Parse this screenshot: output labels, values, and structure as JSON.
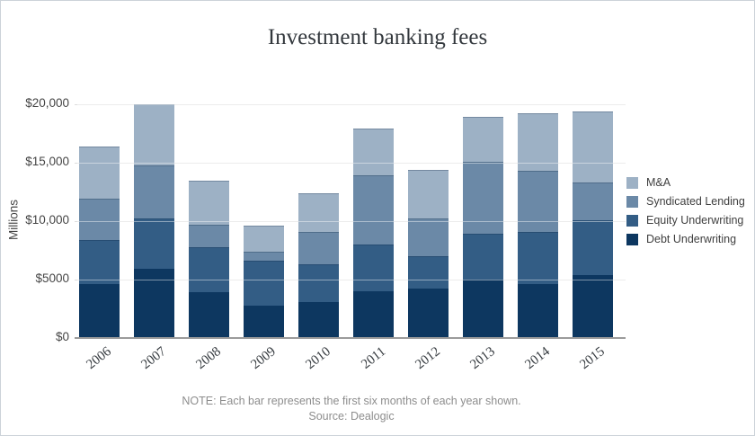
{
  "card": {
    "title": "Investment banking fees"
  },
  "y_axis": {
    "label": "Millions",
    "ticks": [
      {
        "label": "$20,000",
        "value": 20000
      },
      {
        "label": "$15,000",
        "value": 15000
      },
      {
        "label": "$10,000",
        "value": 10000
      },
      {
        "label": "$5000",
        "value": 5000
      },
      {
        "label": "$0",
        "value": 0
      }
    ]
  },
  "legend": [
    {
      "label": "M&A",
      "color": "#9db1c5"
    },
    {
      "label": "Syndicated Lending",
      "color": "#6b89a7"
    },
    {
      "label": "Equity Underwriting",
      "color": "#335d85"
    },
    {
      "label": "Debt Underwriting",
      "color": "#0d3760"
    }
  ],
  "note": {
    "line1": "NOTE: Each bar represents the first six months of each year shown.",
    "line2": "Source: Dealogic"
  },
  "colors": {
    "grid": "#dcdcdc",
    "axis": "#9b9b9b",
    "title_text": "#32373c",
    "tick_text": "#454545",
    "note_text": "#8d8d8d"
  },
  "chart_data": {
    "type": "bar",
    "stacked": true,
    "title": "Investment banking fees",
    "xlabel": "",
    "ylabel": "Millions",
    "ylim": [
      0,
      20000
    ],
    "grid": true,
    "legend_position": "right",
    "categories": [
      "2006",
      "2007",
      "2008",
      "2009",
      "2010",
      "2011",
      "2012",
      "2013",
      "2014",
      "2015"
    ],
    "series": [
      {
        "name": "Debt Underwriting",
        "color": "#0d3760",
        "values": [
          4600,
          5900,
          3900,
          2800,
          3100,
          4000,
          4200,
          5000,
          4600,
          5400
        ]
      },
      {
        "name": "Equity Underwriting",
        "color": "#335d85",
        "values": [
          3800,
          4300,
          3900,
          3800,
          3200,
          4000,
          2800,
          3900,
          4500,
          4700
        ]
      },
      {
        "name": "Syndicated Lending",
        "color": "#6b89a7",
        "values": [
          3500,
          4600,
          1900,
          800,
          2800,
          5900,
          3200,
          6200,
          5200,
          3200
        ]
      },
      {
        "name": "M&A",
        "color": "#9db1c5",
        "values": [
          4500,
          5200,
          3800,
          2200,
          3300,
          4000,
          4200,
          3800,
          4900,
          6100
        ]
      }
    ],
    "totals": [
      16400,
      20000,
      13500,
      9600,
      12400,
      17900,
      14400,
      18900,
      19200,
      19400
    ],
    "note": "NOTE: Each bar represents the first six months of each year shown.",
    "source": "Source: Dealogic"
  }
}
